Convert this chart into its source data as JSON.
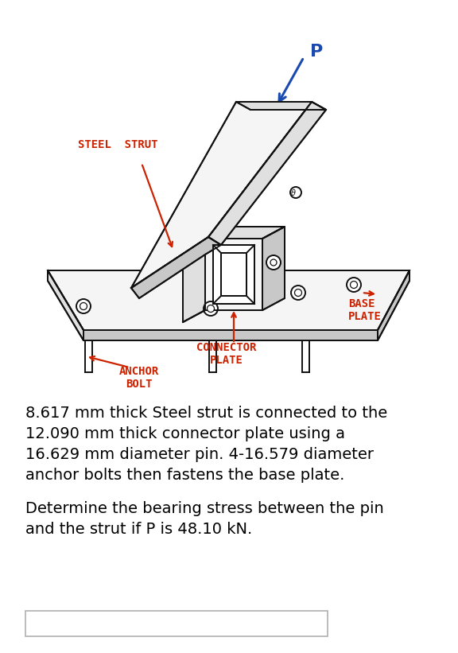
{
  "bg_color": "#ffffff",
  "diagram_labels": {
    "steel_strut": "STEEL  STRUT",
    "base_plate": "BASE\nPLATE",
    "connector_plate": "CONNECTOR\nPLATE",
    "anchor_bolt": "ANCHOR\nBOLT",
    "P_label": "P"
  },
  "label_color": "#cc2200",
  "P_arrow_color": "#1a4ab0",
  "P_label_color": "#1a4ab0",
  "line_color": "#111111",
  "line_width": 1.4,
  "description_lines": [
    "8.617 mm thick Steel strut is connected to the",
    "12.090 mm thick connector plate using a",
    "16.629 mm diameter pin. 4-16.579 diameter",
    "anchor bolts then fastens the base plate."
  ],
  "question_lines": [
    "Determine the bearing stress between the pin",
    "and the strut if P is 48.10 kN."
  ],
  "text_fontsize": 14.0,
  "label_fontsize": 10.0,
  "figsize": [
    5.76,
    8.21
  ],
  "dpi": 100
}
